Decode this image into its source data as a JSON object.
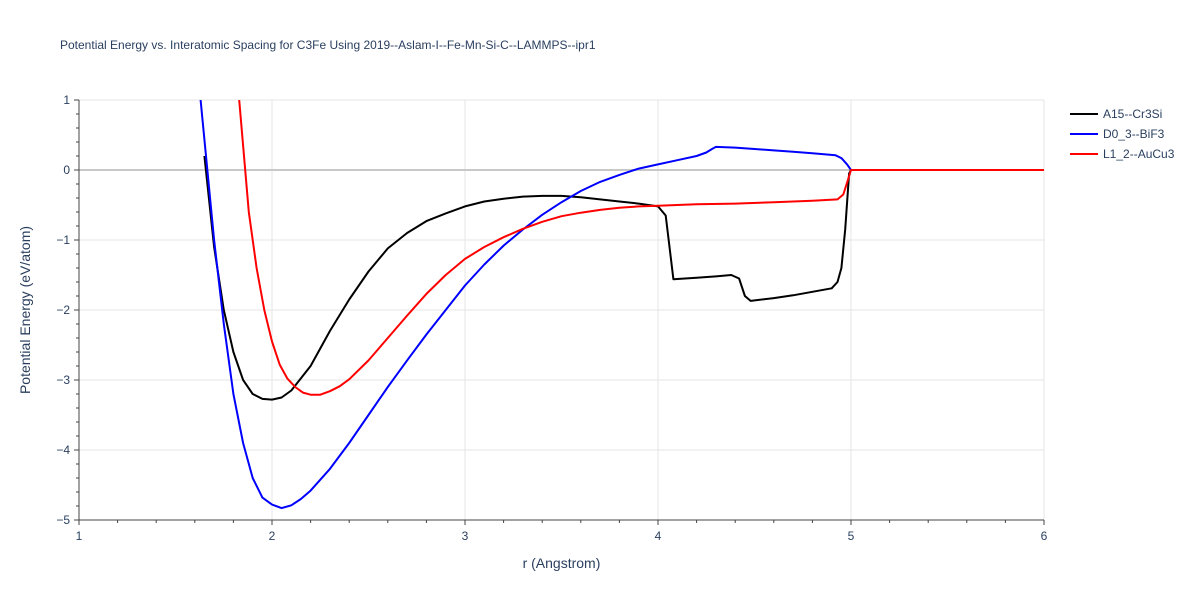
{
  "chart_data": {
    "type": "line",
    "title": "Potential Energy vs. Interatomic Spacing for C3Fe Using 2019--Aslam-I--Fe-Mn-Si-C--LAMMPS--ipr1",
    "xlabel": "r (Angstrom)",
    "ylabel": "Potential Energy (eV/atom)",
    "xlim": [
      1,
      6
    ],
    "ylim": [
      -5,
      1
    ],
    "x_ticks": [
      1,
      2,
      3,
      4,
      5,
      6
    ],
    "y_ticks": [
      1,
      0,
      -1,
      -2,
      -3,
      -4,
      -5
    ],
    "x_tick_labels": [
      "1",
      "2",
      "3",
      "4",
      "5",
      "6"
    ],
    "y_tick_labels": [
      "1",
      "0",
      "−1",
      "−2",
      "−3",
      "−4",
      "−5"
    ],
    "grid": true,
    "legend_position": "top-right",
    "series": [
      {
        "name": "A15--Cr3Si",
        "color": "#000000",
        "x": [
          1.65,
          1.7,
          1.75,
          1.8,
          1.85,
          1.9,
          1.95,
          2.0,
          2.05,
          2.1,
          2.2,
          2.3,
          2.4,
          2.5,
          2.6,
          2.7,
          2.8,
          2.9,
          3.0,
          3.1,
          3.2,
          3.3,
          3.4,
          3.5,
          3.6,
          3.7,
          3.8,
          3.9,
          4.0,
          4.04,
          4.08,
          4.2,
          4.3,
          4.38,
          4.42,
          4.45,
          4.48,
          4.6,
          4.7,
          4.8,
          4.9,
          4.93,
          4.95,
          4.97,
          4.99,
          5.0,
          5.5,
          6.0
        ],
        "y": [
          0.2,
          -1.1,
          -2.0,
          -2.6,
          -3.0,
          -3.2,
          -3.27,
          -3.28,
          -3.25,
          -3.15,
          -2.8,
          -2.3,
          -1.85,
          -1.45,
          -1.12,
          -0.9,
          -0.73,
          -0.62,
          -0.52,
          -0.45,
          -0.41,
          -0.38,
          -0.37,
          -0.37,
          -0.39,
          -0.42,
          -0.45,
          -0.48,
          -0.52,
          -0.65,
          -1.56,
          -1.54,
          -1.52,
          -1.5,
          -1.55,
          -1.8,
          -1.87,
          -1.83,
          -1.79,
          -1.74,
          -1.69,
          -1.6,
          -1.4,
          -0.85,
          -0.05,
          0.0,
          0.0,
          0.0
        ]
      },
      {
        "name": "D0_3--BiF3",
        "color": "#0000ff",
        "x": [
          1.63,
          1.7,
          1.75,
          1.8,
          1.85,
          1.9,
          1.95,
          2.0,
          2.05,
          2.1,
          2.15,
          2.2,
          2.3,
          2.4,
          2.5,
          2.6,
          2.7,
          2.8,
          2.9,
          3.0,
          3.1,
          3.2,
          3.3,
          3.4,
          3.5,
          3.6,
          3.7,
          3.8,
          3.9,
          4.0,
          4.1,
          4.2,
          4.25,
          4.28,
          4.3,
          4.4,
          4.5,
          4.6,
          4.7,
          4.8,
          4.92,
          4.95,
          4.98,
          5.0,
          5.5,
          6.0
        ],
        "y": [
          1.0,
          -1.0,
          -2.2,
          -3.2,
          -3.9,
          -4.4,
          -4.68,
          -4.78,
          -4.83,
          -4.79,
          -4.7,
          -4.58,
          -4.27,
          -3.9,
          -3.5,
          -3.1,
          -2.72,
          -2.35,
          -2.0,
          -1.65,
          -1.35,
          -1.08,
          -0.85,
          -0.64,
          -0.46,
          -0.3,
          -0.17,
          -0.07,
          0.02,
          0.08,
          0.14,
          0.2,
          0.25,
          0.3,
          0.33,
          0.32,
          0.3,
          0.28,
          0.26,
          0.24,
          0.21,
          0.17,
          0.08,
          0.0,
          0.0,
          0.0
        ]
      },
      {
        "name": "L1_2--AuCu3",
        "color": "#ff0000",
        "x": [
          1.83,
          1.88,
          1.92,
          1.96,
          2.0,
          2.04,
          2.08,
          2.12,
          2.16,
          2.2,
          2.25,
          2.3,
          2.35,
          2.4,
          2.5,
          2.6,
          2.7,
          2.8,
          2.9,
          3.0,
          3.1,
          3.2,
          3.3,
          3.4,
          3.5,
          3.6,
          3.7,
          3.8,
          3.9,
          4.0,
          4.2,
          4.4,
          4.6,
          4.8,
          4.93,
          4.96,
          4.98,
          5.0,
          5.5,
          6.0
        ],
        "y": [
          1.0,
          -0.6,
          -1.4,
          -2.0,
          -2.45,
          -2.78,
          -2.98,
          -3.1,
          -3.18,
          -3.21,
          -3.21,
          -3.16,
          -3.09,
          -2.99,
          -2.72,
          -2.4,
          -2.08,
          -1.77,
          -1.5,
          -1.27,
          -1.1,
          -0.96,
          -0.84,
          -0.74,
          -0.66,
          -0.61,
          -0.57,
          -0.54,
          -0.52,
          -0.51,
          -0.49,
          -0.48,
          -0.46,
          -0.44,
          -0.42,
          -0.35,
          -0.18,
          0.0,
          0.0,
          0.0
        ]
      }
    ]
  }
}
